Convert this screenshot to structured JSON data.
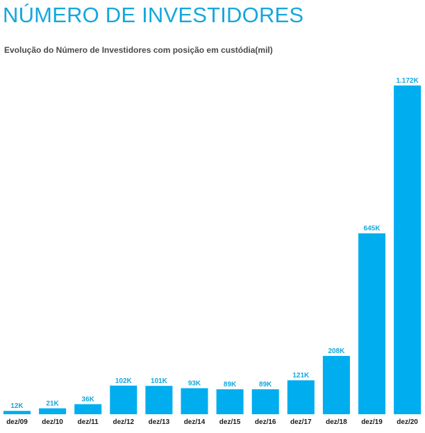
{
  "header": {
    "title": "NÚMERO DE INVESTIDORES",
    "subtitle": "Evolução do Número de Investidores com posição em custódia(mil)"
  },
  "colors": {
    "bar": "#00adef",
    "title": "#14a7dd",
    "value_label": "#14a7dd",
    "category_label": "#1a1a1a"
  },
  "chart_data": {
    "type": "bar",
    "title": "Evolução do Número de Investidores com posição em custódia(mil)",
    "xlabel": "",
    "ylabel": "",
    "grid": false,
    "legend": "none",
    "ylim": [
      0,
      1172
    ],
    "categories": [
      "dez/09",
      "dez/10",
      "dez/11",
      "dez/12",
      "dez/13",
      "dez/14",
      "dez/15",
      "dez/16",
      "dez/17",
      "dez/18",
      "dez/19",
      "dez/20"
    ],
    "values": [
      12,
      21,
      36,
      102,
      101,
      93,
      89,
      89,
      121,
      208,
      645,
      1172
    ],
    "value_labels": [
      "12K",
      "21K",
      "36K",
      "102K",
      "101K",
      "93K",
      "89K",
      "89K",
      "121K",
      "208K",
      "645K",
      "1.172K"
    ]
  }
}
